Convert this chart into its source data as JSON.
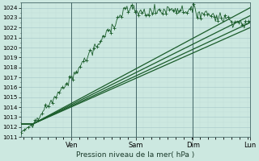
{
  "xlabel": "Pression niveau de la mer( hPa )",
  "bg_color": "#cce8e0",
  "grid_color_major": "#aacccc",
  "grid_color_minor": "#c0ddd8",
  "line_color": "#1a5c2a",
  "ylim": [
    1011,
    1024.5
  ],
  "yticks": [
    1011,
    1012,
    1013,
    1014,
    1015,
    1016,
    1017,
    1018,
    1019,
    1020,
    1021,
    1022,
    1023,
    1024
  ],
  "day_labels": [
    "Ven",
    "Sam",
    "Dim",
    "Lun"
  ],
  "day_positions": [
    0.22,
    0.5,
    0.75,
    1.0
  ],
  "n_points": 200,
  "seed": 7
}
